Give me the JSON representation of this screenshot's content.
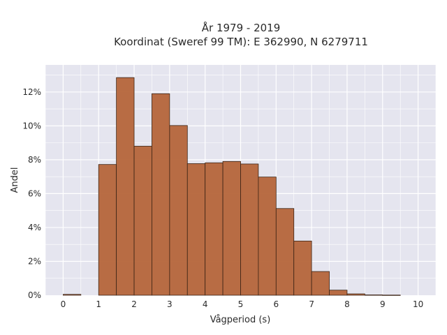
{
  "chart_data": {
    "type": "bar",
    "title": "År 1979 - 2019",
    "subtitle": "Koordinat (Sweref 99 TM): E 362990, N 6279711",
    "xlabel": "Vågperiod (s)",
    "ylabel": "Andel",
    "xlim": [
      -0.5,
      10.5
    ],
    "ylim": [
      0,
      13.6
    ],
    "grid": true,
    "x_ticks": [
      0,
      1,
      2,
      3,
      4,
      5,
      6,
      7,
      8,
      9,
      10
    ],
    "y_ticks": [
      0,
      2,
      4,
      6,
      8,
      10,
      12
    ],
    "y_tick_labels": [
      "0%",
      "2%",
      "4%",
      "6%",
      "8%",
      "10%",
      "12%"
    ],
    "bar_color": "#b5653a",
    "bin_width": 0.5,
    "bins": [
      {
        "start": 0.0,
        "value": 0.05
      },
      {
        "start": 0.5,
        "value": 0.0
      },
      {
        "start": 1.0,
        "value": 7.72
      },
      {
        "start": 1.5,
        "value": 12.85
      },
      {
        "start": 2.0,
        "value": 8.8
      },
      {
        "start": 2.5,
        "value": 11.9
      },
      {
        "start": 3.0,
        "value": 10.02
      },
      {
        "start": 3.5,
        "value": 7.77
      },
      {
        "start": 4.0,
        "value": 7.82
      },
      {
        "start": 4.5,
        "value": 7.9
      },
      {
        "start": 5.0,
        "value": 7.75
      },
      {
        "start": 5.5,
        "value": 6.98
      },
      {
        "start": 6.0,
        "value": 5.12
      },
      {
        "start": 6.5,
        "value": 3.2
      },
      {
        "start": 7.0,
        "value": 1.4
      },
      {
        "start": 7.5,
        "value": 0.3
      },
      {
        "start": 8.0,
        "value": 0.08
      },
      {
        "start": 8.5,
        "value": 0.02
      },
      {
        "start": 9.0,
        "value": 0.01
      }
    ]
  }
}
